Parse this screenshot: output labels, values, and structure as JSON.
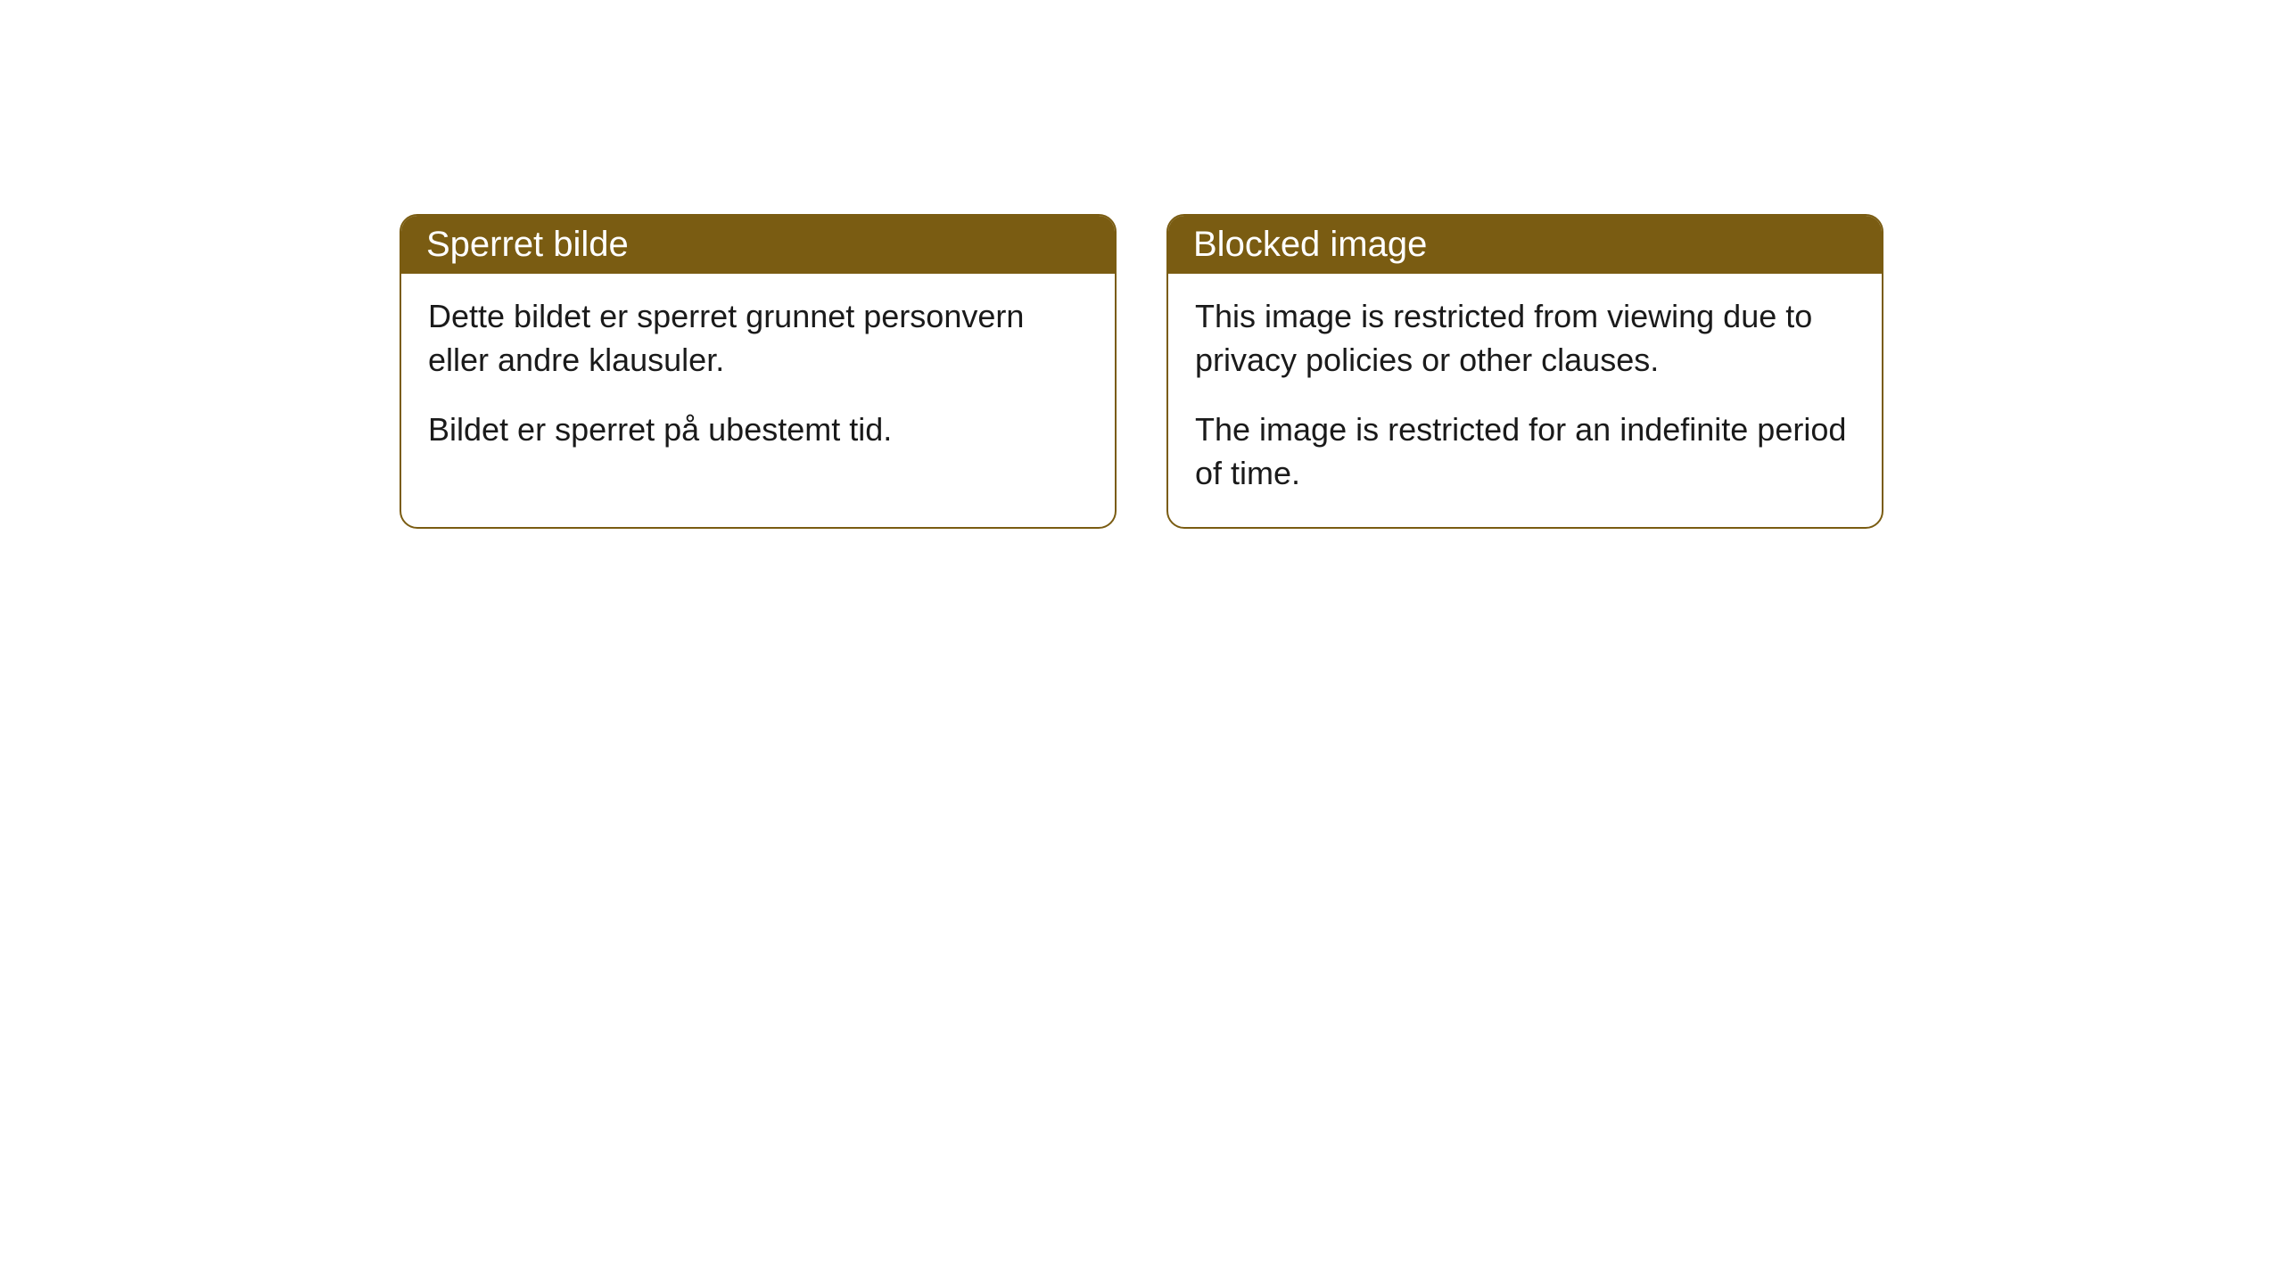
{
  "cards": [
    {
      "title": "Sperret bilde",
      "paragraph1": "Dette bildet er sperret grunnet personvern eller andre klausuler.",
      "paragraph2": "Bildet er sperret på ubestemt tid."
    },
    {
      "title": "Blocked image",
      "paragraph1": "This image is restricted from viewing due to privacy policies or other clauses.",
      "paragraph2": "The image is restricted for an indefinite period of time."
    }
  ],
  "styling": {
    "header_background": "#7a5c12",
    "header_text_color": "#ffffff",
    "border_color": "#7a5c12",
    "body_background": "#ffffff",
    "body_text_color": "#1a1a1a",
    "border_radius": 20,
    "title_fontsize": 40,
    "body_fontsize": 36
  }
}
